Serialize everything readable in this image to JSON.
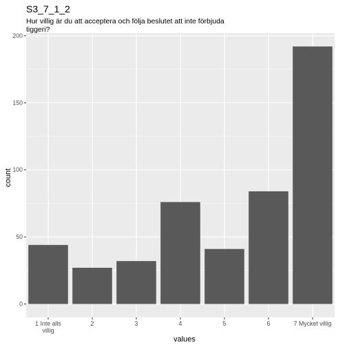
{
  "chart_data": {
    "type": "bar",
    "title": "S3_7_1_2",
    "subtitle_lines": [
      "Hur villig är du att acceptera och följa beslutet att inte förbjuda",
      "tiggeri?"
    ],
    "xlabel": "values",
    "ylabel": "count",
    "categories": [
      [
        "1 Inte alls",
        "villig"
      ],
      [
        "2"
      ],
      [
        "3"
      ],
      [
        "4"
      ],
      [
        "5"
      ],
      [
        "6"
      ],
      [
        "7 Mycket villig"
      ]
    ],
    "values": [
      44,
      27,
      32,
      76,
      41,
      84,
      192
    ],
    "ylim": [
      -10,
      202
    ],
    "yticks": [
      0,
      50,
      100,
      150,
      200
    ],
    "grid": true,
    "colors": {
      "panel": "#ebebeb",
      "grid": "#ffffff",
      "bar": "#595959",
      "tick": "#4d4d4d"
    }
  }
}
